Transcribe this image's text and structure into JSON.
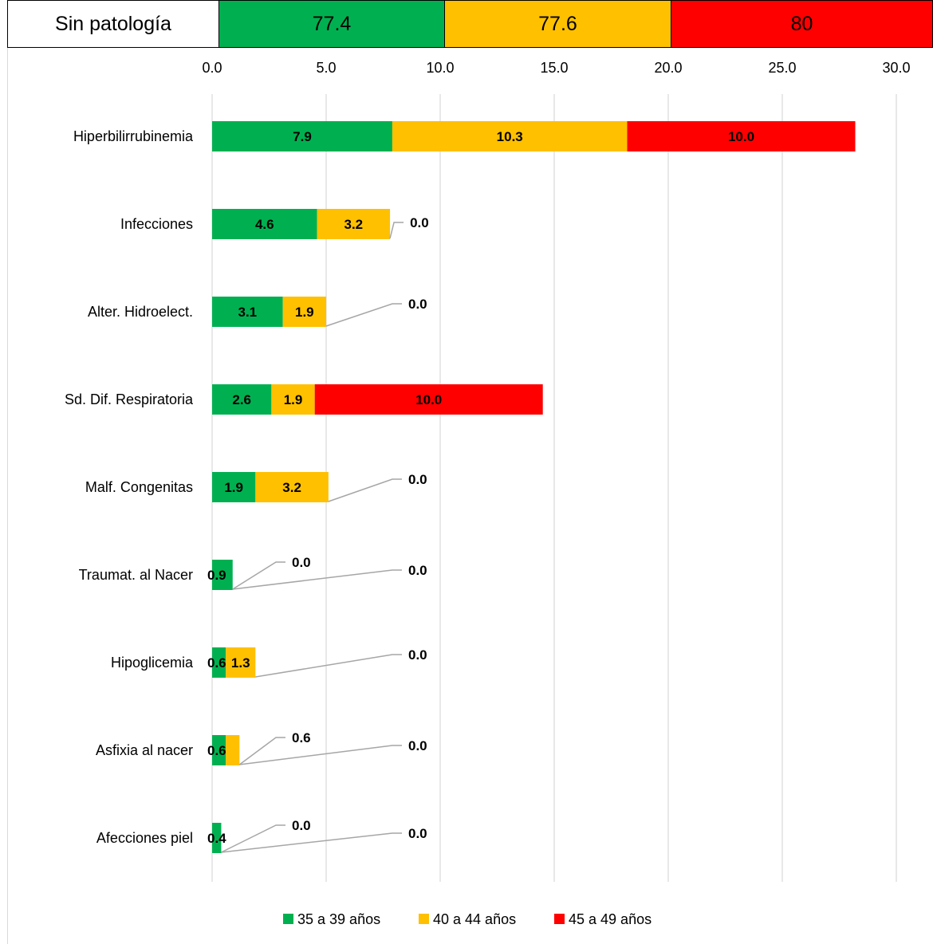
{
  "header_row": {
    "label": "Sin patología",
    "values": [
      {
        "text": "77.4",
        "color": "#00B050"
      },
      {
        "text": "77.6",
        "color": "#FFC000"
      },
      {
        "text": "80",
        "color": "#FF0000"
      }
    ]
  },
  "chart_data": {
    "type": "bar",
    "orientation": "horizontal",
    "stacked": true,
    "categories": [
      "Hiperbilirrubinemia",
      "Infecciones",
      "Alter. Hidroelect.",
      "Sd. Dif. Respiratoria",
      "Malf. Congenitas",
      "Traumat. al Nacer",
      "Hipoglicemia",
      "Asfixia al nacer",
      "Afecciones piel"
    ],
    "series": [
      {
        "name": "35 a 39 años",
        "color": "#00B050",
        "values": [
          7.9,
          4.6,
          3.1,
          2.6,
          1.9,
          0.9,
          0.6,
          0.6,
          0.4
        ]
      },
      {
        "name": "40 a 44 años",
        "color": "#FFC000",
        "values": [
          10.3,
          3.2,
          1.9,
          1.9,
          3.2,
          0.0,
          1.3,
          0.6,
          0.0
        ]
      },
      {
        "name": "45 a 49 años",
        "color": "#FF0000",
        "values": [
          10.0,
          0.0,
          0.0,
          10.0,
          0.0,
          0.0,
          0.0,
          0.0,
          0.0
        ]
      }
    ],
    "xlim": [
      0,
      30
    ],
    "xticks": [
      "0.0",
      "5.0",
      "10.0",
      "15.0",
      "20.0",
      "25.0",
      "30.0"
    ],
    "grid": true,
    "axis_position": "top",
    "legend_position": "bottom"
  }
}
